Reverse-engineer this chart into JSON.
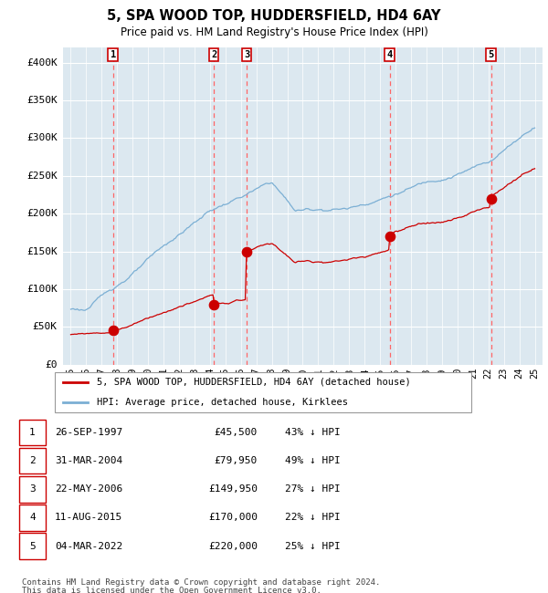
{
  "title": "5, SPA WOOD TOP, HUDDERSFIELD, HD4 6AY",
  "subtitle": "Price paid vs. HM Land Registry's House Price Index (HPI)",
  "legend_line1": "5, SPA WOOD TOP, HUDDERSFIELD, HD4 6AY (detached house)",
  "legend_line2": "HPI: Average price, detached house, Kirklees",
  "footer1": "Contains HM Land Registry data © Crown copyright and database right 2024.",
  "footer2": "This data is licensed under the Open Government Licence v3.0.",
  "hpi_color": "#7bafd4",
  "price_color": "#cc0000",
  "dashed_color": "#ff6666",
  "bg_color": "#dce8f0",
  "sale_points": [
    {
      "label": "1",
      "date": "26-SEP-1997",
      "price": 45500,
      "pct": "43% ↓ HPI",
      "x": 1997.73
    },
    {
      "label": "2",
      "date": "31-MAR-2004",
      "price": 79950,
      "pct": "49% ↓ HPI",
      "x": 2004.25
    },
    {
      "label": "3",
      "date": "22-MAY-2006",
      "price": 149950,
      "pct": "27% ↓ HPI",
      "x": 2006.38
    },
    {
      "label": "4",
      "date": "11-AUG-2015",
      "price": 170000,
      "pct": "22% ↓ HPI",
      "x": 2015.61
    },
    {
      "label": "5",
      "date": "04-MAR-2022",
      "price": 220000,
      "pct": "25% ↓ HPI",
      "x": 2022.17
    }
  ],
  "ylim": [
    0,
    420000
  ],
  "xlim": [
    1994.5,
    2025.5
  ],
  "yticks": [
    0,
    50000,
    100000,
    150000,
    200000,
    250000,
    300000,
    350000,
    400000
  ],
  "ytick_labels": [
    "£0",
    "£50K",
    "£100K",
    "£150K",
    "£200K",
    "£250K",
    "£300K",
    "£350K",
    "£400K"
  ],
  "xtick_years": [
    1995,
    1996,
    1997,
    1998,
    1999,
    2000,
    2001,
    2002,
    2003,
    2004,
    2005,
    2006,
    2007,
    2008,
    2009,
    2010,
    2011,
    2012,
    2013,
    2014,
    2015,
    2016,
    2017,
    2018,
    2019,
    2020,
    2021,
    2022,
    2023,
    2024,
    2025
  ]
}
